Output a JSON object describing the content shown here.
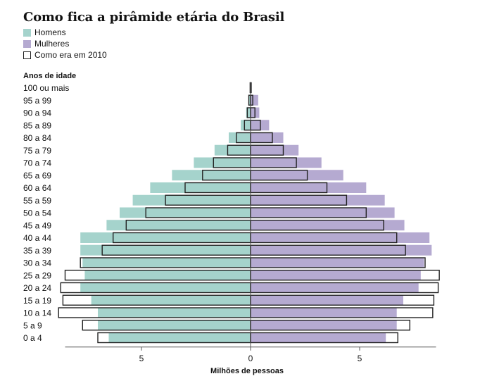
{
  "title": "Como fica a pirâmide etária do Brasil",
  "legend": {
    "men": "Homens",
    "women": "Mulheres",
    "y2010": "Como era em 2010"
  },
  "colors": {
    "men": "#a5d3cc",
    "women": "#b5aad1",
    "outline2010": "#222222",
    "axis": "#555555"
  },
  "chart_data": {
    "type": "bar",
    "orientation": "horizontal-pyramid",
    "title": "Como fica a pirâmide etária do Brasil",
    "ylabel": "Anos de idade",
    "xlabel": "Milhões de pessoas",
    "xlim": [
      -8.5,
      8.5
    ],
    "xticks": [
      {
        "value": -5,
        "label": "5"
      },
      {
        "value": 0,
        "label": "0"
      },
      {
        "value": 5,
        "label": "5"
      }
    ],
    "categories": [
      "100 ou mais",
      "95 a 99",
      "90 a 94",
      "85 a 89",
      "80 a 84",
      "75 a 79",
      "70 a 74",
      "65 a 69",
      "60 a 64",
      "55 a 59",
      "50 a 54",
      "45 a 49",
      "40 a 44",
      "35 a 39",
      "30 a 34",
      "25 a 29",
      "20 a 24",
      "15 a 19",
      "10 a 14",
      "5 a 9",
      "0 a 4"
    ],
    "series": [
      {
        "name": "Homens",
        "side": "left",
        "values": [
          0.03,
          0.1,
          0.2,
          0.45,
          1.0,
          1.65,
          2.6,
          3.6,
          4.6,
          5.4,
          6.0,
          6.6,
          7.8,
          7.8,
          7.7,
          7.6,
          7.8,
          7.3,
          7.0,
          7.0,
          6.5
        ]
      },
      {
        "name": "Mulheres",
        "side": "right",
        "values": [
          0.05,
          0.35,
          0.4,
          0.85,
          1.5,
          2.2,
          3.25,
          4.25,
          5.3,
          6.15,
          6.6,
          7.05,
          8.2,
          8.3,
          7.95,
          7.8,
          7.7,
          7.0,
          6.7,
          6.7,
          6.2
        ]
      },
      {
        "name": "Como era em 2010 (homens)",
        "side": "left",
        "values": [
          0.02,
          0.08,
          0.15,
          0.28,
          0.65,
          1.05,
          1.7,
          2.2,
          3.0,
          3.9,
          4.8,
          5.7,
          6.3,
          6.8,
          7.8,
          8.5,
          8.7,
          8.6,
          8.8,
          7.7,
          7.0
        ]
      },
      {
        "name": "Como era em 2010 (mulheres)",
        "side": "right",
        "values": [
          0.03,
          0.1,
          0.2,
          0.45,
          1.0,
          1.5,
          2.1,
          2.6,
          3.5,
          4.4,
          5.3,
          6.1,
          6.7,
          7.1,
          8.0,
          8.65,
          8.6,
          8.4,
          8.35,
          7.3,
          6.75
        ]
      }
    ]
  }
}
